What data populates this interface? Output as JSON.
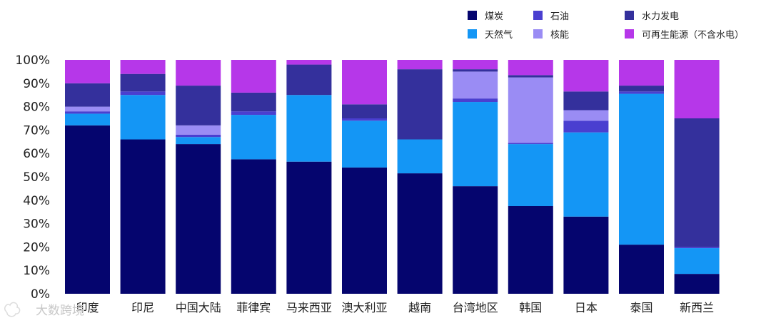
{
  "chart_data": {
    "type": "bar",
    "stacked": true,
    "categories": [
      "印度",
      "印尼",
      "中国大陆",
      "菲律宾",
      "马来西亚",
      "澳大利亚",
      "越南",
      "台湾地区",
      "韩国",
      "日本",
      "泰国",
      "新西兰"
    ],
    "series": [
      {
        "name": "煤炭",
        "color": "#05056e",
        "values": [
          72,
          66,
          64,
          57.5,
          56.5,
          54,
          51.5,
          46,
          37.5,
          33,
          21,
          8.5
        ]
      },
      {
        "name": "天然气",
        "color": "#1496f5",
        "values": [
          5,
          19,
          3,
          19,
          28.5,
          20,
          14.5,
          36,
          26.5,
          36,
          64.5,
          11
        ]
      },
      {
        "name": "石油",
        "color": "#4a3fd0",
        "values": [
          1,
          1.5,
          1,
          1.5,
          0,
          1,
          0,
          1.5,
          0.5,
          5,
          1,
          0.5
        ]
      },
      {
        "name": "核能",
        "color": "#9a8cf4",
        "values": [
          2,
          0,
          4,
          0,
          0,
          0,
          0,
          11.5,
          28,
          4.5,
          0,
          0
        ]
      },
      {
        "name": "水力发电",
        "color": "#34309c",
        "values": [
          10,
          7.5,
          17,
          8,
          13,
          6,
          30,
          1,
          1,
          8,
          2.5,
          55
        ]
      },
      {
        "name": "可再生能源（不含水电）",
        "color": "#b637e9",
        "values": [
          10,
          6,
          11,
          14,
          2,
          19,
          4,
          4,
          6.5,
          13.5,
          11,
          25
        ]
      }
    ],
    "yticks": [
      "0%",
      "10%",
      "20%",
      "30%",
      "40%",
      "50%",
      "60%",
      "70%",
      "80%",
      "90%",
      "100%"
    ],
    "ylim": [
      0,
      100
    ],
    "legend_position": "top-right",
    "grid": false
  },
  "watermark": "大数跨境"
}
